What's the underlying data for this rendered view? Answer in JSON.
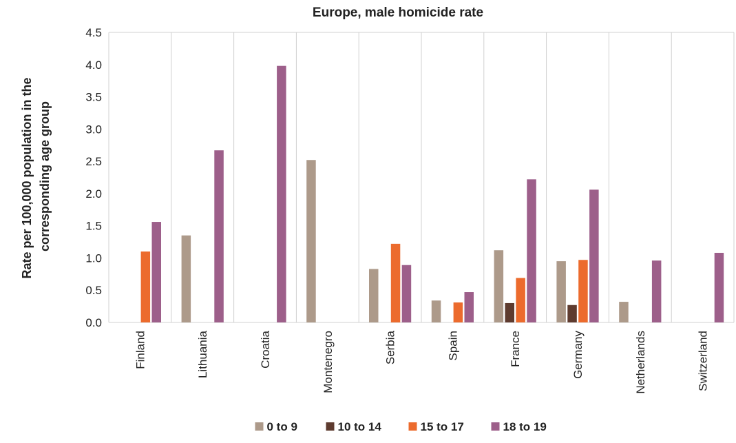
{
  "chart_data": {
    "type": "bar",
    "title": "Europe, male homicide rate",
    "ylabel_lines": [
      "Rate per 100,000 population in the",
      "corresponding age group"
    ],
    "xlabel": "",
    "ylim": [
      0,
      4.5
    ],
    "yticks": [
      "0.0",
      "0.5",
      "1.0",
      "1.5",
      "2.0",
      "2.5",
      "3.0",
      "3.5",
      "4.0",
      "4.5"
    ],
    "ytick_values": [
      0,
      0.5,
      1.0,
      1.5,
      2.0,
      2.5,
      3.0,
      3.5,
      4.0,
      4.5
    ],
    "grid": "vertical category separators",
    "legend_position": "bottom",
    "categories": [
      "Finland",
      "Lithuania",
      "Croatia",
      "Montenegro",
      "Serbia",
      "Spain",
      "France",
      "Germany",
      "Netherlands",
      "Switzerland"
    ],
    "series": [
      {
        "name": "0 to 9",
        "color": "#ad9a8a",
        "values": [
          0,
          1.35,
          0,
          2.52,
          0.83,
          0.34,
          1.12,
          0.95,
          0.32,
          0
        ]
      },
      {
        "name": "10 to 14",
        "color": "#5e3b2f",
        "values": [
          0,
          0,
          0,
          0,
          0,
          0,
          0.3,
          0.27,
          0,
          0
        ]
      },
      {
        "name": "15 to 17",
        "color": "#ec6b2d",
        "values": [
          1.1,
          0,
          0,
          0,
          1.22,
          0.31,
          0.69,
          0.97,
          0,
          0
        ]
      },
      {
        "name": "18 to 19",
        "color": "#9d5f8a",
        "values": [
          1.56,
          2.67,
          3.98,
          0,
          0.89,
          0.47,
          2.22,
          2.06,
          0.96,
          1.08
        ]
      }
    ]
  }
}
